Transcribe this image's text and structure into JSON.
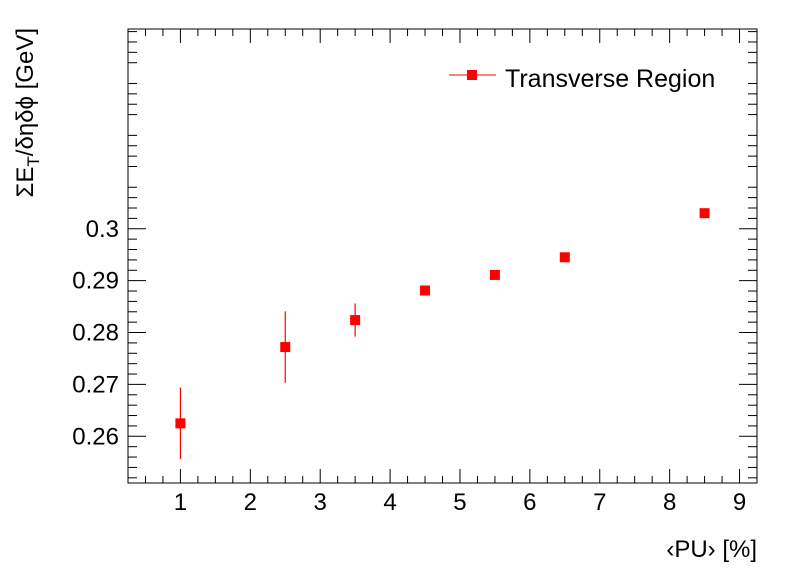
{
  "chart_data": {
    "type": "scatter",
    "title": "",
    "xlabel": "‹PU› [%]",
    "ylabel_parts": {
      "sigma": "ΣE",
      "sub": "T",
      "rest": "/δηδϕ [GeV]"
    },
    "xlim": [
      0.25,
      9.25
    ],
    "ylim": [
      0.251,
      0.3385
    ],
    "x_ticks": [
      1,
      2,
      3,
      4,
      5,
      6,
      7,
      8,
      9
    ],
    "x_tick_labels": [
      "1",
      "2",
      "3",
      "4",
      "5",
      "6",
      "7",
      "8",
      "9"
    ],
    "y_ticks": [
      0.26,
      0.27,
      0.28,
      0.29,
      0.3
    ],
    "y_tick_labels": [
      "0.26",
      "0.27",
      "0.28",
      "0.29",
      "0.3"
    ],
    "grid": false,
    "legend_position": "top-right",
    "series": [
      {
        "name": "Transverse Region",
        "color": "#ff0000",
        "marker": "square",
        "x": [
          1,
          2.5,
          3.5,
          4.5,
          5.5,
          6.5,
          8.5
        ],
        "y": [
          0.2625,
          0.2772,
          0.2824,
          0.2881,
          0.2911,
          0.2945,
          0.303
        ],
        "yerr": [
          0.0069,
          0.0069,
          0.0032,
          0.0009,
          0.0008,
          0.0009,
          0.0005
        ]
      }
    ]
  }
}
